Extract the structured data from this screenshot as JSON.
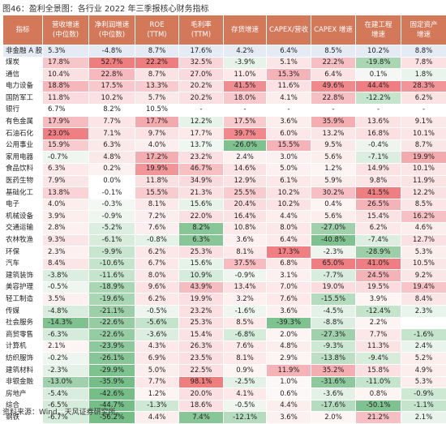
{
  "title": "图46：盈利全景图：各行业 2022 年三季报核心财务指标",
  "source": "资料来源：Wind，天风证券研究所。",
  "chart_data": {
    "type": "table",
    "columns": [
      {
        "lines": [
          "指标"
        ]
      },
      {
        "lines": [
          "营收增速",
          "(中位数)"
        ]
      },
      {
        "lines": [
          "净利润增速",
          "(中位数)"
        ]
      },
      {
        "lines": [
          "ROE",
          "(TTM)"
        ]
      },
      {
        "lines": [
          "毛利率",
          "(TTM)"
        ]
      },
      {
        "lines": [
          "存货增速"
        ]
      },
      {
        "lines": [
          "CAPEX/营收"
        ]
      },
      {
        "lines": [
          "CAPEX 增速"
        ]
      },
      {
        "lines": [
          "在建工程",
          "增速"
        ]
      },
      {
        "lines": [
          "固定资产",
          "增速"
        ]
      }
    ],
    "highlight_rows": [
      0
    ],
    "rows": [
      [
        "非金融 A 股",
        "5.3%",
        "-4.8%",
        "8.7%",
        "17.6%",
        "4.2%",
        "6.4%",
        "8.5%",
        "10.2%",
        "8.8%"
      ],
      [
        "煤炭",
        "17.8%",
        "52.7%",
        "22.2%",
        "32.5%",
        "-3.9%",
        "5.1%",
        "22.2%",
        "-19.8%",
        "7.8%"
      ],
      [
        "通信",
        "10.4%",
        "22.8%",
        "8.7%",
        "27.0%",
        "11.0%",
        "15.3%",
        "6.4%",
        "0.1%",
        "1.8%"
      ],
      [
        "电力设备",
        "18.8%",
        "17.5%",
        "13.3%",
        "20.2%",
        "41.5%",
        "11.6%",
        "49.6%",
        "44.4%",
        "28.3%"
      ],
      [
        "国防军工",
        "11.8%",
        "10.2%",
        "5.7%",
        "20.2%",
        "18.0%",
        "4.1%",
        "22.8%",
        "-12.2%",
        "6.2%"
      ],
      [
        "银行",
        "6.7%",
        "8.2%",
        "10.5%",
        "-",
        "-",
        "-",
        "-",
        "-",
        "-"
      ],
      [
        "有色金属",
        "17.9%",
        "7.7%",
        "17.7%",
        "12.2%",
        "17.5%",
        "3.6%",
        "35.9%",
        "13.6%",
        "9.1%"
      ],
      [
        "石油石化",
        "23.0%",
        "7.1%",
        "9.7%",
        "17.7%",
        "39.7%",
        "6.0%",
        "13.2%",
        "16.8%",
        "10.1%"
      ],
      [
        "公用事业",
        "15.9%",
        "6.3%",
        "4.0%",
        "13.7%",
        "-26.0%",
        "15.5%",
        "9.5%",
        "-0.4%",
        "8.7%"
      ],
      [
        "家用电器",
        "-0.7%",
        "4.8%",
        "17.2%",
        "23.2%",
        "2.4%",
        "3.0%",
        "5.6%",
        "-7.1%",
        "19.9%"
      ],
      [
        "食品饮料",
        "6.3%",
        "0.2%",
        "19.9%",
        "46.7%",
        "14.6%",
        "5.0%",
        "1.2%",
        "14.9%",
        "10.1%"
      ],
      [
        "医药生物",
        "7.9%",
        "0.0%",
        "11.8%",
        "34.9%",
        "12.9%",
        "6.1%",
        "5.9%",
        "9.8%",
        "11.9%"
      ],
      [
        "基础化工",
        "13.8%",
        "-0.1%",
        "15.5%",
        "21.3%",
        "25.5%",
        "10.2%",
        "30.2%",
        "41.5%",
        "12.2%"
      ],
      [
        "电子",
        "4.0%",
        "-0.3%",
        "8.1%",
        "15.6%",
        "20.4%",
        "10.2%",
        "0.4%",
        "26.5%",
        "8.5%"
      ],
      [
        "机械设备",
        "3.9%",
        "-0.9%",
        "7.2%",
        "22.0%",
        "16.4%",
        "4.4%",
        "5.6%",
        "15.4%",
        "16.2%"
      ],
      [
        "交通运输",
        "2.8%",
        "-5.2%",
        "7.6%",
        "8.2%",
        "10.8%",
        "8.0%",
        "-27.0%",
        "6.2%",
        "4.6%"
      ],
      [
        "农林牧渔",
        "9.3%",
        "-6.1%",
        "-0.8%",
        "6.3%",
        "3.6%",
        "6.4%",
        "-40.8%",
        "-7.4%",
        "12.7%"
      ],
      [
        "环保",
        "2.3%",
        "-9.9%",
        "6.2%",
        "25.3%",
        "8.1%",
        "17.3%",
        "-2.3%",
        "-28.9%",
        "5.3%"
      ],
      [
        "汽车",
        "8.4%",
        "-10.6%",
        "6.7%",
        "15.6%",
        "37.5%",
        "6.8%",
        "65.0%",
        "41.0%",
        "10.5%"
      ],
      [
        "建筑装饰",
        "-3.8%",
        "-11.6%",
        "8.0%",
        "10.9%",
        "-0.9%",
        "3.1%",
        "-7.7%",
        "24.5%",
        "9.2%"
      ],
      [
        "美容护理",
        "-0.5%",
        "-18.9%",
        "9.6%",
        "43.9%",
        "13.4%",
        "7.0%",
        "19.0%",
        "19.5%",
        "19.4%"
      ],
      [
        "轻工制造",
        "3.5%",
        "-19.6%",
        "6.2%",
        "19.9%",
        "3.2%",
        "7.6%",
        "-15.5%",
        "3.9%",
        "8.4%"
      ],
      [
        "传媒",
        "-4.8%",
        "-21.1%",
        "-0.5%",
        "23.2%",
        "-1.6%",
        "3.6%",
        "-4.5%",
        "-12.4%",
        "2.3%"
      ],
      [
        "社会服务",
        "-14.3%",
        "-22.6%",
        "-5.6%",
        "25.3%",
        "8.5%",
        "-39.3%",
        "-8.8%",
        "2.2%",
        ""
      ],
      [
        "商贸零售",
        "-6.3%",
        "-22.6%",
        "-3.6%",
        "15.4%",
        "-6.8%",
        "2.0%",
        "-27.3%",
        "7.7%",
        "-1.6%"
      ],
      [
        "计算机",
        "2.1%",
        "-23.9%",
        "4.3%",
        "26.3%",
        "7.6%",
        "4.8%",
        "-9.3%",
        "11.3%",
        "2.4%"
      ],
      [
        "纺织服饰",
        "-0.2%",
        "-26.1%",
        "6.9%",
        "23.5%",
        "8.1%",
        "2.9%",
        "-13.8%",
        "-9.4%",
        "5.2%"
      ],
      [
        "建筑材料",
        "-2.3%",
        "-29.9%",
        "5.0%",
        "22.5%",
        "0.9%",
        "11.9%",
        "35.2%",
        "15.8%",
        "4.9%"
      ],
      [
        "非银金融",
        "-13.0%",
        "-35.9%",
        "7.7%",
        "98.1%",
        "-2.5%",
        "1.0%",
        "-31.6%",
        "-11.0%",
        "5.3%"
      ],
      [
        "房地产",
        "-5.4%",
        "-42.6%",
        "1.2%",
        "20.0%",
        "4.1%",
        "0.6%",
        "-3.6%",
        "0.8%",
        "-0.9%"
      ],
      [
        "综合",
        "-6.5%",
        "-44.7%",
        "-1.3%",
        "18.6%",
        "-0.5%",
        "4.4%",
        "-17.6%",
        "-50.1%",
        "-1.1%"
      ],
      [
        "钢铁",
        "-6.7%",
        "-56.2%",
        "4.4%",
        "7.4%",
        "-12.1%",
        "3.6%",
        "2.0%",
        "21.2%",
        "2.1%"
      ]
    ],
    "cell_colors": [
      [
        "#e5ebf5",
        "#e5ebf5",
        "#e5ebf5",
        "#e5ebf5",
        "#e5ebf5",
        "#e5ebf5",
        "#e5ebf5",
        "#e5ebf5",
        "#e5ebf5",
        "#e5ebf5"
      ],
      [
        "#ffffff",
        "#f7c6c9",
        "#ee7d7d",
        "#ee7d7d",
        "#f9d5d7",
        "#e7f3e9",
        "#fbe5e6",
        "#f6bfc3",
        "#a9d6b3",
        "#fbe1e2"
      ],
      [
        "#ffffff",
        "#fbe0e2",
        "#f6b9bd",
        "#fbe3e4",
        "#fadadc",
        "#fde9ea",
        "#f5b3b8",
        "#fbe3e4",
        "#f4f7f4",
        "#e9f5ec"
      ],
      [
        "#ffffff",
        "#f6b7bb",
        "#f8c9cc",
        "#f8cbce",
        "#fbdfe1",
        "#ef8e92",
        "#fbe1e3",
        "#f0888c",
        "#ef7e82",
        "#f19599"
      ],
      [
        "#ffffff",
        "#fadcde",
        "#fbe1e3",
        "#fbe9ea",
        "#fbdfe1",
        "#f8c9cc",
        "#fdeeee",
        "#f6bfc3",
        "#c4e4cb",
        "#fbe2e3"
      ],
      [
        "#ffffff",
        "#ffffff",
        "#ffffff",
        "#ffffff",
        "#ffffff",
        "#ffffff",
        "#ffffff",
        "#ffffff",
        "#ffffff",
        "#ffffff"
      ],
      [
        "#ffffff",
        "#f6bcc0",
        "#fbe5e6",
        "#f3aaae",
        "#e6f3e8",
        "#f8ccce",
        "#fdeeee",
        "#f4adb1",
        "#fbe3e4",
        "#fbe8e9"
      ],
      [
        "#ffffff",
        "#f07f84",
        "#fbe6e7",
        "#fbe3e4",
        "#fde9ea",
        "#f0888c",
        "#fde8e9",
        "#fbe6e7",
        "#fbdfe1",
        "#fbe5e6"
      ],
      [
        "#ffffff",
        "#f8cbce",
        "#fbe8e9",
        "#fceeef",
        "#eef7f0",
        "#7ec28f",
        "#f5b3b8",
        "#fbe9ea",
        "#eef5ef",
        "#fbe6e7"
      ],
      [
        "#ffffff",
        "#eef6ef",
        "#fbe8e9",
        "#f4adb1",
        "#fbdfe1",
        "#fdf0f0",
        "#fdf0f0",
        "#fdeeee",
        "#dceedf",
        "#f3aaae"
      ],
      [
        "#ffffff",
        "#fde9ea",
        "#fdf2f2",
        "#f19599",
        "#f7c0c3",
        "#fbe2e3",
        "#fdf0f0",
        "#fdf4f4",
        "#fbe2e3",
        "#fbe5e6"
      ],
      [
        "#ffffff",
        "#fbe6e7",
        "#ffffff",
        "#fbe0e2",
        "#fadadc",
        "#fbe3e4",
        "#fde8e9",
        "#fdeeee",
        "#fbe5e6",
        "#fbe3e4"
      ],
      [
        "#ffffff",
        "#f9d3d5",
        "#ffffff",
        "#f8cbce",
        "#fbdfe1",
        "#f8cbce",
        "#fbe2e3",
        "#f6bfc3",
        "#ef7e82",
        "#fbe1e3"
      ],
      [
        "#ffffff",
        "#fdeeee",
        "#f4f8f5",
        "#fde9ea",
        "#e6f3e8",
        "#fadcde",
        "#fbe2e3",
        "#fdf4f4",
        "#f4b3b7",
        "#fbe5e6"
      ],
      [
        "#ffffff",
        "#fdeeee",
        "#eef6ef",
        "#fceeef",
        "#fbdfe1",
        "#fbe3e4",
        "#fdeeee",
        "#fdeeee",
        "#fbe3e4",
        "#f6c1c4"
      ],
      [
        "#ffffff",
        "#fdf0f0",
        "#dceedf",
        "#fceeef",
        "#88c697",
        "#fde9ea",
        "#fde8e9",
        "#a0d0ac",
        "#fde8e9",
        "#fdeeee"
      ],
      [
        "#ffffff",
        "#fbe6e7",
        "#d7ecdb",
        "#e5f2e8",
        "#88c697",
        "#fdf0f0",
        "#fde9ea",
        "#7fc28f",
        "#dceedf",
        "#fbe1e3"
      ],
      [
        "#ffffff",
        "#fdf0f0",
        "#c8e6cf",
        "#fde8e9",
        "#fbdfe1",
        "#fde9ea",
        "#f07f84",
        "#eef5ef",
        "#9ccfa8",
        "#fdeeee"
      ],
      [
        "#ffffff",
        "#fbe6e7",
        "#c4e4cb",
        "#fde8e9",
        "#e6f3e8",
        "#f6bcc0",
        "#fde8e9",
        "#ef7e82",
        "#ef7e82",
        "#fbe6e7"
      ],
      [
        "#ffffff",
        "#dceedf",
        "#c4e4cb",
        "#fde8e9",
        "#d6ecdb",
        "#eef6ef",
        "#fdf0f0",
        "#d9edde",
        "#f4b3b7",
        "#fbe6e7"
      ],
      [
        "#ffffff",
        "#eef6ef",
        "#a9d6b3",
        "#fbe3e4",
        "#f6bcc0",
        "#fbe3e4",
        "#fde9ea",
        "#fadcde",
        "#fadcde",
        "#f7c4c7"
      ],
      [
        "#ffffff",
        "#fdf0f0",
        "#a9d6b3",
        "#fde8e9",
        "#fbdfe1",
        "#fdf0f0",
        "#fde9ea",
        "#b5dcbf",
        "#fdf4f4",
        "#fbe6e7"
      ],
      [
        "#ffffff",
        "#d9edde",
        "#9ccfa8",
        "#ecf5ee",
        "#fbdfe1",
        "#eef6ef",
        "#fdf0f0",
        "#e3f1e6",
        "#c4e4cb",
        "#e9f5ec"
      ],
      [
        "#ffffff",
        "#7fc28f",
        "#95cca2",
        "#c4e4cb",
        "#fbdfe1",
        "#fde9ea",
        "#7ec28f",
        "#dceedf",
        "#fdf4f4",
        "#ffffff"
      ],
      [
        "#ffffff",
        "#d6ecdb",
        "#95cca2",
        "#dceedf",
        "#fbe2e3",
        "#d6ecdb",
        "#fdf4f4",
        "#a0d0ac",
        "#fde8e9",
        "#c4e4cb"
      ],
      [
        "#ffffff",
        "#fdf4f4",
        "#8ec99d",
        "#fde9ea",
        "#fbdfe1",
        "#fde9ea",
        "#fdeeee",
        "#cde8d3",
        "#fbe3e4",
        "#e9f5ec"
      ],
      [
        "#ffffff",
        "#eef6ef",
        "#88c697",
        "#fde8e9",
        "#fbdfe1",
        "#fde9ea",
        "#fdf4f4",
        "#bde0c5",
        "#d7ecdb",
        "#fdeeee"
      ],
      [
        "#ffffff",
        "#e3f1e6",
        "#7ec28f",
        "#fdeeee",
        "#fbdfe1",
        "#fdf4f4",
        "#f4b3b7",
        "#f4adb1",
        "#fbdfe1",
        "#fdeeee"
      ],
      [
        "#ffffff",
        "#a0d0ac",
        "#76be88",
        "#fde8e9",
        "#ee7d7d",
        "#e3f1e6",
        "#fdf8f8",
        "#8ec99d",
        "#c4e4cb",
        "#fdeeee"
      ],
      [
        "#ffffff",
        "#d9edde",
        "#76be88",
        "#fdf4f4",
        "#fbdfe1",
        "#fde9ea",
        "#fdf8f8",
        "#e3f1e6",
        "#fdf4f4",
        "#cde8d3"
      ],
      [
        "#ffffff",
        "#d6ecdb",
        "#76be88",
        "#cde8d3",
        "#fbdfe1",
        "#eef6ef",
        "#fdeeee",
        "#b5dcbf",
        "#7fc28f",
        "#c4e4cb"
      ],
      [
        "#ffffff",
        "#d6ecdb",
        "#76be88",
        "#fdeeee",
        "#88c697",
        "#b5dcbf",
        "#fdf0f0",
        "#fdf4f4",
        "#f6bfc3",
        "#e9f5ec"
      ]
    ]
  }
}
